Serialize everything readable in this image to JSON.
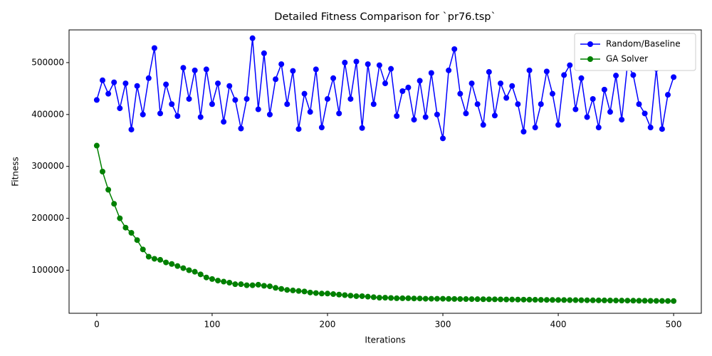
{
  "chart_data": {
    "type": "line",
    "title": "Detailed Fitness Comparison for `pr76.tsp`",
    "x_label": "Iterations",
    "y_label": "Fitness",
    "x": [
      0,
      5,
      10,
      15,
      20,
      25,
      30,
      35,
      40,
      45,
      50,
      55,
      60,
      65,
      70,
      75,
      80,
      85,
      90,
      95,
      100,
      105,
      110,
      115,
      120,
      125,
      130,
      135,
      140,
      145,
      150,
      155,
      160,
      165,
      170,
      175,
      180,
      185,
      190,
      195,
      200,
      205,
      210,
      215,
      220,
      225,
      230,
      235,
      240,
      245,
      250,
      255,
      260,
      265,
      270,
      275,
      280,
      285,
      290,
      295,
      300,
      305,
      310,
      315,
      320,
      325,
      330,
      335,
      340,
      345,
      350,
      355,
      360,
      365,
      370,
      375,
      380,
      385,
      390,
      395,
      400,
      405,
      410,
      415,
      420,
      425,
      430,
      435,
      440,
      445,
      450,
      455,
      460,
      465,
      470,
      475,
      480,
      485,
      490,
      495,
      500
    ],
    "series": [
      {
        "name": "Random/Baseline",
        "color": "#0000ff",
        "values": [
          428000,
          466000,
          440000,
          462000,
          412000,
          460000,
          371000,
          455000,
          400000,
          470000,
          528000,
          402000,
          458000,
          420000,
          397000,
          490000,
          430000,
          485000,
          395000,
          487000,
          420000,
          460000,
          386000,
          455000,
          428000,
          373000,
          430000,
          547000,
          410000,
          518000,
          400000,
          468000,
          497000,
          420000,
          484000,
          372000,
          440000,
          405000,
          487000,
          375000,
          430000,
          470000,
          402000,
          500000,
          430000,
          502000,
          374000,
          497000,
          420000,
          495000,
          460000,
          488000,
          397000,
          445000,
          452000,
          390000,
          465000,
          395000,
          480000,
          400000,
          354000,
          485000,
          526000,
          440000,
          402000,
          460000,
          420000,
          380000,
          482000,
          398000,
          460000,
          432000,
          455000,
          420000,
          367000,
          485000,
          375000,
          420000,
          483000,
          440000,
          380000,
          476000,
          495000,
          410000,
          470000,
          395000,
          430000,
          375000,
          448000,
          405000,
          475000,
          390000,
          497000,
          476000,
          420000,
          402000,
          375000,
          488000,
          372000,
          438000,
          472000
        ]
      },
      {
        "name": "GA Solver",
        "color": "#008000",
        "values": [
          340000,
          290000,
          255000,
          228000,
          200000,
          182000,
          172000,
          158000,
          140000,
          126000,
          122000,
          120000,
          115000,
          112000,
          108000,
          104000,
          100000,
          97000,
          92000,
          86000,
          83000,
          80000,
          78000,
          76000,
          73000,
          73000,
          71000,
          71000,
          72000,
          70000,
          69000,
          66000,
          64000,
          62000,
          61000,
          60000,
          59000,
          57000,
          56000,
          55000,
          55000,
          54000,
          53000,
          52000,
          51000,
          50000,
          50000,
          49000,
          48000,
          47000,
          47000,
          46500,
          46000,
          46000,
          46000,
          45500,
          45500,
          45000,
          45000,
          45000,
          45000,
          44800,
          44600,
          44500,
          44400,
          44300,
          44200,
          44100,
          44000,
          43900,
          43800,
          43600,
          43500,
          43400,
          43300,
          43200,
          43000,
          42900,
          42800,
          42700,
          42600,
          42500,
          42400,
          42300,
          42200,
          42100,
          42000,
          41900,
          41800,
          41700,
          41600,
          41500,
          41400,
          41300,
          41200,
          41100,
          41000,
          40900,
          40800,
          40700,
          40600
        ]
      }
    ],
    "xlim": [
      -24,
      524
    ],
    "ylim": [
      17000,
      563000
    ],
    "xticks": [
      0,
      100,
      200,
      300,
      400,
      500
    ],
    "yticks": [
      100000,
      200000,
      300000,
      400000,
      500000
    ],
    "legend": "upper right"
  }
}
